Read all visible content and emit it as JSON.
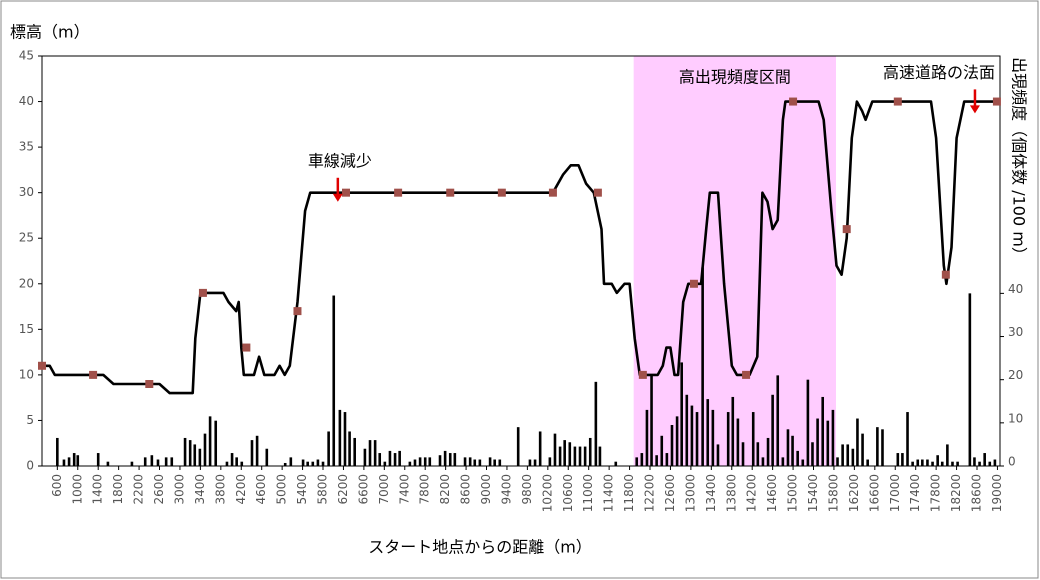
{
  "chart_data": {
    "type": "line",
    "y_label": "標高（m）",
    "x_label": "スタート地点からの距離（m）",
    "y2_label": "出現頻度（個体数 /100 m）",
    "xlim": [
      300,
      19050
    ],
    "xticks": [
      600,
      1000,
      1400,
      1800,
      2200,
      2600,
      3000,
      3400,
      3800,
      4200,
      4600,
      5000,
      5400,
      5800,
      6200,
      6600,
      7000,
      7400,
      7800,
      8200,
      8600,
      9000,
      9400,
      9800,
      10200,
      10600,
      11000,
      11400,
      11800,
      12200,
      12600,
      13000,
      13400,
      13800,
      14200,
      14600,
      15000,
      15400,
      15800,
      16200,
      16600,
      17000,
      17400,
      17800,
      18200,
      18600,
      19000
    ],
    "ylim": [
      0,
      45
    ],
    "yticks": [
      0,
      5,
      10,
      15,
      20,
      25,
      30,
      35,
      40,
      45
    ],
    "y2lim": [
      0,
      95
    ],
    "y2ticks": [
      0,
      10,
      20,
      30,
      40
    ],
    "highlight": {
      "label": "高出現頻度区間",
      "range": [
        11880,
        15840
      ],
      "color": "#ffccff"
    },
    "annotations": [
      {
        "text": "車線減少",
        "x": 6090,
        "y": 29
      },
      {
        "text": "高速道路の法面",
        "x": 18560,
        "y": 38.7
      }
    ],
    "series": [
      {
        "type": "line",
        "color": "#000000",
        "x": [
          300,
          450,
          550,
          1500,
          1700,
          2600,
          2800,
          3250,
          3300,
          3400,
          3850,
          3950,
          4100,
          4150,
          4200,
          4250,
          4450,
          4550,
          4650,
          4850,
          4950,
          5050,
          5150,
          5300,
          5450,
          5550,
          10300,
          10500,
          10650,
          10800,
          10950,
          11100,
          11250,
          11300,
          11450,
          11550,
          11700,
          11800,
          11900,
          12000,
          12350,
          12450,
          12520,
          12600,
          12680,
          12750,
          12850,
          12950,
          13200,
          13300,
          13370,
          13530,
          13650,
          13800,
          13900,
          14150,
          14300,
          14400,
          14500,
          14600,
          14700,
          14800,
          14850,
          15500,
          15600,
          15750,
          15850,
          15950,
          16050,
          16150,
          16250,
          16350,
          16420,
          16550,
          17700,
          17800,
          17950,
          18000,
          18100,
          18200,
          18350,
          19050
        ],
        "values": [
          11,
          11,
          10,
          10,
          9,
          9,
          8,
          8,
          14,
          19,
          19,
          18,
          17,
          18,
          13,
          10,
          10,
          12,
          10,
          10,
          11,
          10,
          11,
          18,
          28,
          30,
          30,
          32,
          33,
          33,
          31,
          30,
          26,
          20,
          20,
          19,
          20,
          20,
          14,
          10,
          10,
          11,
          13,
          13,
          10,
          10,
          18,
          20,
          20,
          26,
          30,
          30,
          20,
          11,
          10,
          10,
          12,
          30,
          29,
          26,
          27,
          38,
          40,
          40,
          38,
          28,
          22,
          21,
          25,
          36,
          40,
          39,
          38,
          40,
          40,
          36,
          22,
          20,
          24,
          36,
          40,
          40
        ]
      },
      {
        "type": "scatter",
        "color": "#a0504a",
        "x": [
          300,
          1300,
          2400,
          3450,
          4300,
          5300,
          6250,
          7270,
          8290,
          9300,
          10300,
          11180,
          12060,
          13060,
          14080,
          15000,
          16050,
          17050,
          17990,
          18990
        ],
        "values": [
          11,
          10,
          9,
          19,
          13,
          17,
          30,
          30,
          30,
          30,
          30,
          30,
          10,
          20,
          10,
          40,
          26,
          40,
          21,
          40
        ]
      },
      {
        "type": "bar",
        "axis": "y2",
        "color": "#000000",
        "x": [
          600,
          730,
          830,
          930,
          1000,
          1400,
          1590,
          2060,
          2320,
          2450,
          2570,
          2730,
          2840,
          3100,
          3200,
          3290,
          3390,
          3490,
          3590,
          3700,
          3920,
          4020,
          4110,
          4210,
          4410,
          4510,
          4700,
          5060,
          5170,
          5410,
          5500,
          5600,
          5700,
          5800,
          5910,
          6010,
          6130,
          6230,
          6320,
          6420,
          6620,
          6720,
          6820,
          6910,
          7010,
          7110,
          7210,
          7300,
          7500,
          7600,
          7700,
          7800,
          7890,
          8090,
          8190,
          8290,
          8380,
          8580,
          8680,
          8770,
          8870,
          9070,
          9160,
          9260,
          9620,
          9850,
          9950,
          10050,
          10240,
          10340,
          10440,
          10530,
          10630,
          10730,
          10830,
          10930,
          11030,
          11140,
          11220,
          11530,
          11940,
          12040,
          12140,
          12230,
          12330,
          12430,
          12530,
          12630,
          12730,
          12820,
          12920,
          13020,
          13120,
          13230,
          13330,
          13430,
          13530,
          13730,
          13820,
          13920,
          14020,
          14220,
          14310,
          14410,
          14510,
          14600,
          14700,
          14800,
          14900,
          14990,
          15090,
          15190,
          15290,
          15380,
          15480,
          15580,
          15680,
          15780,
          15870,
          15970,
          16070,
          16170,
          16260,
          16360,
          16460,
          16650,
          16750,
          17050,
          17140,
          17240,
          17340,
          17440,
          17530,
          17630,
          17730,
          17830,
          17920,
          18020,
          18120,
          18220,
          18460,
          18550,
          18650,
          18750,
          18850,
          18950
        ],
        "values": [
          6.5,
          1.5,
          2,
          3,
          2.5,
          3,
          1,
          1,
          2,
          2.5,
          1.5,
          2,
          2,
          6.5,
          6,
          5,
          4,
          7.5,
          11.5,
          10.5,
          1,
          3,
          2,
          1,
          6,
          7,
          4,
          0.7,
          2,
          1.5,
          1,
          1,
          1.5,
          1,
          8,
          39.5,
          13,
          12.5,
          8,
          6.5,
          4,
          6,
          6,
          3,
          1,
          3.5,
          3,
          3.5,
          1,
          1.5,
          2,
          2,
          2,
          2.5,
          3.5,
          3,
          3,
          2,
          2,
          1.5,
          1.5,
          2,
          1.5,
          1.5,
          9,
          1.5,
          1.5,
          8,
          2,
          7.5,
          4.5,
          6,
          5.5,
          4.5,
          4.5,
          4.5,
          6.5,
          19.5,
          4.5,
          1,
          2,
          3,
          13,
          21,
          2.5,
          7,
          3,
          9.5,
          11.5,
          24,
          16.5,
          14,
          12.5,
          46,
          15.5,
          13,
          5,
          12.5,
          16,
          11,
          5.5,
          12.5,
          5.5,
          2,
          6.5,
          16.5,
          21,
          2,
          8.5,
          7,
          3.5,
          1.5,
          20,
          5.5,
          11,
          16,
          10.5,
          13,
          2,
          5,
          5,
          4,
          11,
          7.5,
          1.5,
          9,
          8.5,
          3,
          3,
          12.5,
          1,
          1.5,
          1.5,
          1.5,
          1,
          2.5,
          1,
          5,
          1,
          1,
          40,
          2,
          1,
          3,
          1,
          1.5
        ]
      }
    ]
  }
}
